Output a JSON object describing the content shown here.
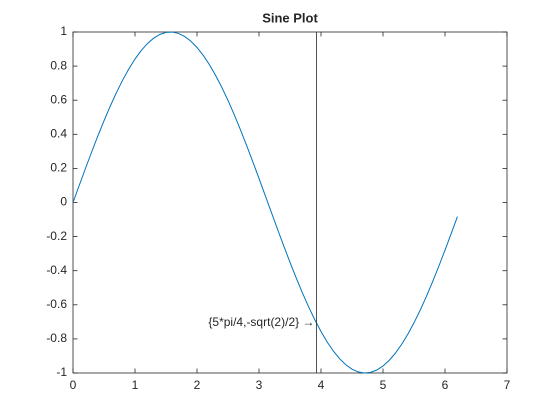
{
  "chart_data": {
    "type": "line",
    "title": "Sine Plot",
    "x": [
      0,
      0.1,
      0.2,
      0.3,
      0.4,
      0.5,
      0.6,
      0.7,
      0.8,
      0.9,
      1,
      1.1,
      1.2,
      1.3,
      1.4,
      1.5,
      1.6,
      1.7,
      1.8,
      1.9,
      2,
      2.1,
      2.2,
      2.3,
      2.4,
      2.5,
      2.6,
      2.7,
      2.8,
      2.9,
      3,
      3.1,
      3.2,
      3.3,
      3.4,
      3.5,
      3.6,
      3.7,
      3.8,
      3.9,
      4,
      4.1,
      4.2,
      4.3,
      4.4,
      4.5,
      4.6,
      4.7,
      4.8,
      4.9,
      5,
      5.1,
      5.2,
      5.3,
      5.4,
      5.5,
      5.6,
      5.7,
      5.8,
      5.9,
      6,
      6.1,
      6.2
    ],
    "series": [
      {
        "color": "#0072bd",
        "values": [
          0,
          0.0998,
          0.1987,
          0.2955,
          0.3894,
          0.4794,
          0.5646,
          0.6442,
          0.7174,
          0.7833,
          0.8415,
          0.8912,
          0.932,
          0.9636,
          0.9854,
          0.9975,
          0.9996,
          0.9917,
          0.9738,
          0.9463,
          0.9093,
          0.8632,
          0.8085,
          0.7457,
          0.6755,
          0.5985,
          0.5155,
          0.4274,
          0.335,
          0.2392,
          0.1411,
          0.0416,
          -0.0584,
          -0.1577,
          -0.2555,
          -0.3508,
          -0.4425,
          -0.5298,
          -0.6119,
          -0.6878,
          -0.7568,
          -0.8183,
          -0.8716,
          -0.9162,
          -0.9516,
          -0.9775,
          -0.9937,
          -0.9999,
          -0.9962,
          -0.9825,
          -0.9589,
          -0.9258,
          -0.8835,
          -0.8323,
          -0.7728,
          -0.7055,
          -0.6313,
          -0.5507,
          -0.4646,
          -0.3739,
          -0.2794,
          -0.1822,
          -0.0831
        ]
      }
    ],
    "reference_line_x": 3.927,
    "annotation": {
      "text": "{5*pi/4,-sqrt(2)/2} →",
      "x": 3.927,
      "y": -0.707
    },
    "xlim": [
      0,
      7
    ],
    "xticks": [
      0,
      1,
      2,
      3,
      4,
      5,
      6,
      7
    ],
    "ylim": [
      -1,
      1
    ],
    "yticks": [
      -1,
      -0.8,
      -0.6,
      -0.4,
      -0.2,
      0,
      0.2,
      0.4,
      0.6,
      0.8,
      1
    ],
    "grid": false
  }
}
